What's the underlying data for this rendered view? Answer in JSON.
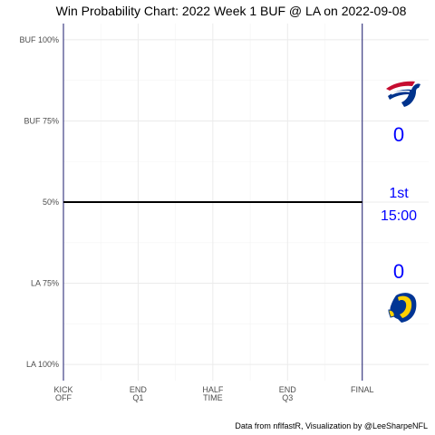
{
  "chart_data": {
    "type": "line",
    "title": "Win Probability Chart: 2022 Week 1 BUF @ LA on 2022-09-08",
    "caption": "Data from nflfastR, Visualization by @LeeSharpeNFL",
    "xlabel": "",
    "ylabel": "",
    "x_ticks": [
      {
        "pos": 3600,
        "lines": [
          "KICK",
          "OFF"
        ]
      },
      {
        "pos": 2700,
        "lines": [
          "END",
          "Q1"
        ]
      },
      {
        "pos": 1800,
        "lines": [
          "HALF",
          "TIME"
        ]
      },
      {
        "pos": 900,
        "lines": [
          "END",
          "Q3"
        ]
      },
      {
        "pos": 0,
        "lines": [
          "FINAL"
        ]
      }
    ],
    "xlim": [
      3600,
      -800
    ],
    "y_ticks": [
      {
        "value": 1.0,
        "label": "BUF 100%"
      },
      {
        "value": 0.75,
        "label": "BUF 75%"
      },
      {
        "value": 0.5,
        "label": "50%"
      },
      {
        "value": 0.25,
        "label": "LA 75%"
      },
      {
        "value": 0.0,
        "label": "LA 100%"
      }
    ],
    "ylim": [
      -0.05,
      1.05
    ],
    "grid": true,
    "vertical_markers": [
      3600,
      0
    ],
    "series": [
      {
        "values": [
          [
            3600,
            0.5
          ],
          [
            0,
            0.5
          ]
        ],
        "color": "#000000"
      }
    ]
  },
  "scoreboard": {
    "away_team": "BUF",
    "home_team": "LA",
    "away_score": "0",
    "home_score": "0",
    "quarter": "1st",
    "clock": "15:00",
    "score_color": "#0000ff"
  },
  "colors": {
    "marker_line": "#1a1a6e",
    "bills_blue": "#00338d",
    "bills_red": "#c60c30",
    "rams_blue": "#003594",
    "rams_gold": "#ffd100"
  }
}
